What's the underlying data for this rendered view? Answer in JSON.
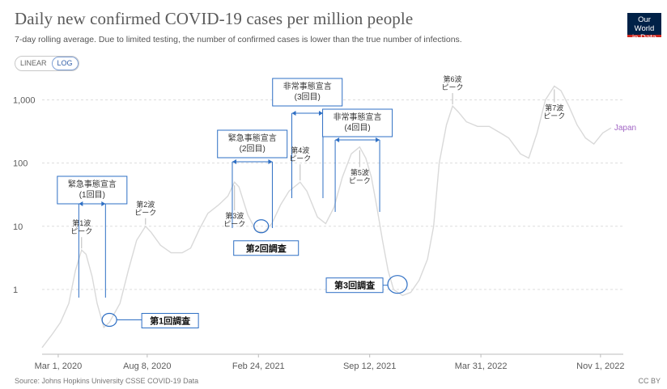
{
  "header": {
    "title": "Daily new confirmed COVID-19 cases per million people",
    "subtitle": "7-day rolling average. Due to limited testing, the number of confirmed cases is lower than the true number of infections.",
    "logo_line1": "Our World",
    "logo_line2": "in Data"
  },
  "controls": {
    "linear_label": "LINEAR",
    "log_label": "LOG",
    "active": "LOG"
  },
  "footer": {
    "source": "Source: Johns Hopkins University CSSE COVID-19 Data",
    "license": "CC BY"
  },
  "colors": {
    "series": "#d9d9d9",
    "annotation": "#2e6fc4",
    "grid": "#dddddd",
    "label_japan": "#a266c5"
  },
  "chart_data": {
    "type": "line",
    "scale": "log",
    "ylim": [
      0.1,
      2000
    ],
    "y_ticks": [
      {
        "value": 1,
        "label": "1"
      },
      {
        "value": 10,
        "label": "10"
      },
      {
        "value": 100,
        "label": "100"
      },
      {
        "value": 1000,
        "label": "1,000"
      }
    ],
    "x_ticks": [
      {
        "date": "2020-03-01",
        "label": "Mar 1, 2020"
      },
      {
        "date": "2020-08-08",
        "label": "Aug 8, 2020"
      },
      {
        "date": "2021-02-24",
        "label": "Feb 24, 2021"
      },
      {
        "date": "2021-09-12",
        "label": "Sep 12, 2021"
      },
      {
        "date": "2022-03-31",
        "label": "Mar 31, 2022"
      },
      {
        "date": "2022-11-01",
        "label": "Nov 1, 2022"
      }
    ],
    "xlim": [
      "2020-02-01",
      "2022-12-12"
    ],
    "series": [
      {
        "name": "Japan",
        "points": [
          [
            "2020-02-01",
            0.12
          ],
          [
            "2020-02-20",
            0.2
          ],
          [
            "2020-03-05",
            0.3
          ],
          [
            "2020-03-20",
            0.6
          ],
          [
            "2020-04-01",
            2.0
          ],
          [
            "2020-04-12",
            4.2
          ],
          [
            "2020-04-20",
            3.6
          ],
          [
            "2020-05-01",
            1.6
          ],
          [
            "2020-05-10",
            0.6
          ],
          [
            "2020-05-22",
            0.25
          ],
          [
            "2020-06-01",
            0.3
          ],
          [
            "2020-06-20",
            0.6
          ],
          [
            "2020-07-05",
            2.0
          ],
          [
            "2020-07-20",
            6.0
          ],
          [
            "2020-08-05",
            10.0
          ],
          [
            "2020-08-15",
            8.0
          ],
          [
            "2020-09-01",
            5.0
          ],
          [
            "2020-09-20",
            3.8
          ],
          [
            "2020-10-10",
            3.8
          ],
          [
            "2020-10-25",
            4.5
          ],
          [
            "2020-11-10",
            9.0
          ],
          [
            "2020-11-25",
            16.0
          ],
          [
            "2020-12-15",
            22.0
          ],
          [
            "2020-12-31",
            30.0
          ],
          [
            "2021-01-12",
            50.0
          ],
          [
            "2021-01-20",
            42.0
          ],
          [
            "2021-02-05",
            15.0
          ],
          [
            "2021-02-20",
            8.5
          ],
          [
            "2021-03-05",
            8.0
          ],
          [
            "2021-03-20",
            11.0
          ],
          [
            "2021-04-05",
            22.0
          ],
          [
            "2021-04-20",
            36.0
          ],
          [
            "2021-05-10",
            50.0
          ],
          [
            "2021-05-22",
            36.0
          ],
          [
            "2021-06-10",
            14.0
          ],
          [
            "2021-06-25",
            11.0
          ],
          [
            "2021-07-10",
            20.0
          ],
          [
            "2021-07-25",
            60.0
          ],
          [
            "2021-08-10",
            140.0
          ],
          [
            "2021-08-25",
            180.0
          ],
          [
            "2021-09-05",
            120.0
          ],
          [
            "2021-09-15",
            60.0
          ],
          [
            "2021-09-25",
            20.0
          ],
          [
            "2021-10-05",
            6.0
          ],
          [
            "2021-10-15",
            2.0
          ],
          [
            "2021-10-25",
            1.0
          ],
          [
            "2021-11-10",
            0.8
          ],
          [
            "2021-11-25",
            0.9
          ],
          [
            "2021-12-10",
            1.4
          ],
          [
            "2021-12-25",
            3.0
          ],
          [
            "2022-01-05",
            10.0
          ],
          [
            "2022-01-15",
            100.0
          ],
          [
            "2022-01-28",
            400.0
          ],
          [
            "2022-02-08",
            800.0
          ],
          [
            "2022-02-18",
            650.0
          ],
          [
            "2022-03-05",
            450.0
          ],
          [
            "2022-03-25",
            380.0
          ],
          [
            "2022-04-15",
            380.0
          ],
          [
            "2022-05-05",
            300.0
          ],
          [
            "2022-05-20",
            250.0
          ],
          [
            "2022-06-10",
            140.0
          ],
          [
            "2022-06-25",
            120.0
          ],
          [
            "2022-07-10",
            300.0
          ],
          [
            "2022-07-25",
            1000.0
          ],
          [
            "2022-08-10",
            1650.0
          ],
          [
            "2022-08-22",
            1400.0
          ],
          [
            "2022-09-05",
            800.0
          ],
          [
            "2022-09-20",
            400.0
          ],
          [
            "2022-10-05",
            250.0
          ],
          [
            "2022-10-20",
            200.0
          ],
          [
            "2022-11-05",
            300.0
          ],
          [
            "2022-11-20",
            360.0
          ]
        ]
      }
    ],
    "series_label": "Japan",
    "waves": [
      {
        "label": [
          "第1波",
          "ピーク"
        ],
        "date": "2020-04-12",
        "value": 4.2
      },
      {
        "label": [
          "第2波",
          "ピーク"
        ],
        "date": "2020-08-05",
        "value": 10.0
      },
      {
        "label": [
          "第3波",
          "ピーク"
        ],
        "date": "2021-01-12",
        "value": 50.0
      },
      {
        "label": [
          "第4波",
          "ピーク"
        ],
        "date": "2021-05-10",
        "value": 50.0
      },
      {
        "label": [
          "第5波",
          "ピーク"
        ],
        "date": "2021-08-25",
        "value": 180.0
      },
      {
        "label": [
          "第6波",
          "ピーク"
        ],
        "date": "2022-02-08",
        "value": 800.0
      },
      {
        "label": [
          "第7波",
          "ピーク"
        ],
        "date": "2022-08-10",
        "value": 1650.0
      }
    ],
    "emergencies": [
      {
        "label": [
          "緊急事態宣言",
          "(1回目)"
        ],
        "start": "2020-04-07",
        "end": "2020-05-25"
      },
      {
        "label": [
          "緊急事態宣言",
          "(2回目)"
        ],
        "start": "2021-01-08",
        "end": "2021-03-21"
      },
      {
        "label": [
          "非常事態宣言",
          "(3回目)"
        ],
        "start": "2021-04-25",
        "end": "2021-06-20"
      },
      {
        "label": [
          "非常事態宣言",
          "(4回目)"
        ],
        "start": "2021-07-12",
        "end": "2021-09-30"
      }
    ],
    "surveys": [
      {
        "label": "第1回調査",
        "date": "2020-06-01",
        "value": 0.33
      },
      {
        "label": "第2回調査",
        "date": "2021-03-01",
        "value": 10.0
      },
      {
        "label": "第3回調査",
        "date": "2021-11-01",
        "value": 1.2
      }
    ]
  }
}
